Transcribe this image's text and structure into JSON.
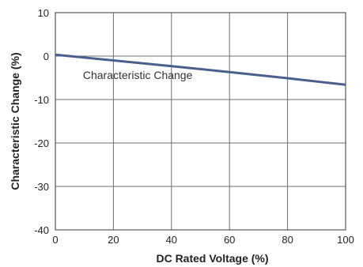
{
  "chart_data": {
    "type": "line",
    "xlabel": "DC Rated Voltage (%)",
    "ylabel": "Characteristic Change (%)",
    "xlim": [
      0,
      100
    ],
    "ylim": [
      -40,
      10
    ],
    "xticks": [
      0,
      20,
      40,
      60,
      80,
      100
    ],
    "yticks": [
      10,
      0,
      -10,
      -20,
      -30,
      -40
    ],
    "grid": true,
    "annotation": "Characteristic Change",
    "series": [
      {
        "x": [
          0,
          20,
          40,
          60,
          80,
          100
        ],
        "values": [
          0.3,
          -1.0,
          -2.3,
          -3.7,
          -5.1,
          -6.6
        ]
      }
    ],
    "colors": {
      "line": "#4a5f8c",
      "grid": "#6e6e6e",
      "frame": "#555555"
    }
  }
}
